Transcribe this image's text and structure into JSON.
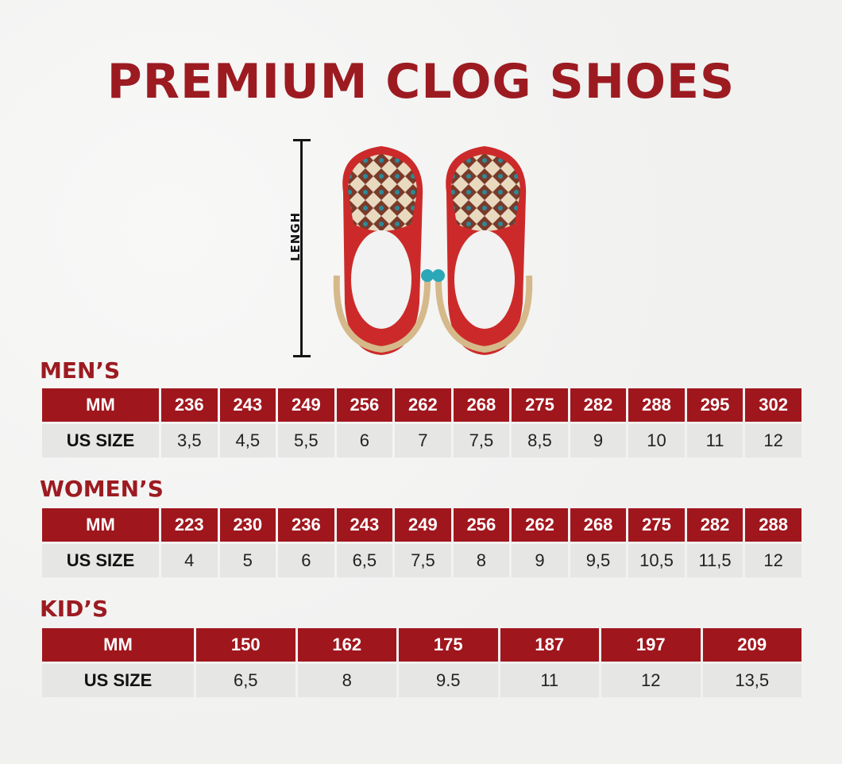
{
  "title": "PREMIUM CLOG SHOES",
  "diagram": {
    "length_label": "LENGH"
  },
  "colors": {
    "brand_red": "#9c1b21",
    "cell_red": "#a0161d",
    "cell_gray": "#e6e6e5"
  },
  "mens": {
    "title": "MEN’S",
    "mm_label": "MM",
    "us_label": "US SIZE",
    "mm": [
      "236",
      "243",
      "249",
      "256",
      "262",
      "268",
      "275",
      "282",
      "288",
      "295",
      "302"
    ],
    "us": [
      "3,5",
      "4,5",
      "5,5",
      "6",
      "7",
      "7,5",
      "8,5",
      "9",
      "10",
      "11",
      "12"
    ]
  },
  "womens": {
    "title": "WOMEN’S",
    "mm_label": "MM",
    "us_label": "US SIZE",
    "mm": [
      "223",
      "230",
      "236",
      "243",
      "249",
      "256",
      "262",
      "268",
      "275",
      "282",
      "288"
    ],
    "us": [
      "4",
      "5",
      "6",
      "6,5",
      "7,5",
      "8",
      "9",
      "9,5",
      "10,5",
      "11,5",
      "12"
    ]
  },
  "kids": {
    "title": "KID’S",
    "mm_label": "MM",
    "us_label": "US SIZE",
    "mm": [
      "150",
      "162",
      "175",
      "187",
      "197",
      "209"
    ],
    "us": [
      "6,5",
      "8",
      "9.5",
      "11",
      "12",
      "13,5"
    ]
  }
}
